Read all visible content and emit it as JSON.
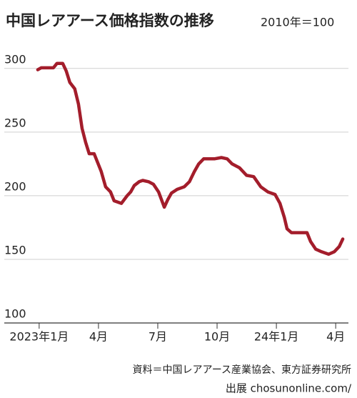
{
  "chart_data": {
    "type": "line",
    "title": "中国レアアース価格指数の推移",
    "subtitle": "2010年＝100",
    "source": "資料＝中国レアアース産業協会、東方証券研究所",
    "credit": "出展 chosunonline.com/",
    "x": [
      -0.07,
      0.1,
      0.72,
      0.9,
      1.19,
      1.37,
      1.55,
      1.8,
      1.99,
      2.17,
      2.35,
      2.53,
      2.78,
      2.96,
      3.14,
      3.36,
      3.61,
      3.79,
      4.16,
      4.45,
      4.63,
      4.81,
      5.06,
      5.24,
      5.53,
      5.78,
      6.04,
      6.33,
      6.51,
      6.69,
      6.98,
      7.34,
      7.6,
      7.85,
      8.07,
      8.32,
      8.61,
      8.86,
      9.22,
      9.51,
      9.76,
      10.13,
      10.49,
      10.85,
      11.21,
      11.57,
      11.93,
      12.18,
      12.4,
      12.54,
      12.76,
      13.19,
      13.55,
      13.73,
      13.99,
      14.28,
      14.64,
      14.93,
      15.18,
      15.36
    ],
    "series": [
      {
        "color": "#a31d2b",
        "values": [
          299,
          300.5,
          300.5,
          304,
          304,
          298,
          289,
          284,
          272,
          253,
          242,
          233,
          233,
          226,
          219,
          207,
          203,
          196,
          194,
          200,
          203,
          208,
          211,
          212,
          211,
          209,
          203,
          191,
          197,
          202,
          205,
          207,
          211,
          219,
          225,
          229,
          229,
          229,
          230,
          229,
          225,
          222,
          216,
          215,
          207,
          203,
          201,
          194,
          183,
          174,
          171,
          171,
          171,
          164,
          158,
          156,
          154,
          156,
          160,
          166
        ]
      }
    ],
    "xlim": [
      -0.5,
      15.5
    ],
    "xticks": [
      {
        "value": 0,
        "label": "2023年1月"
      },
      {
        "value": 3,
        "label": "4月"
      },
      {
        "value": 6,
        "label": "7月"
      },
      {
        "value": 9,
        "label": "10月"
      },
      {
        "value": 12,
        "label": "24年1月"
      },
      {
        "value": 15,
        "label": "4月"
      }
    ],
    "ylim": [
      100,
      310
    ],
    "yticks": [
      100,
      150,
      200,
      250,
      300
    ],
    "grid": true
  }
}
